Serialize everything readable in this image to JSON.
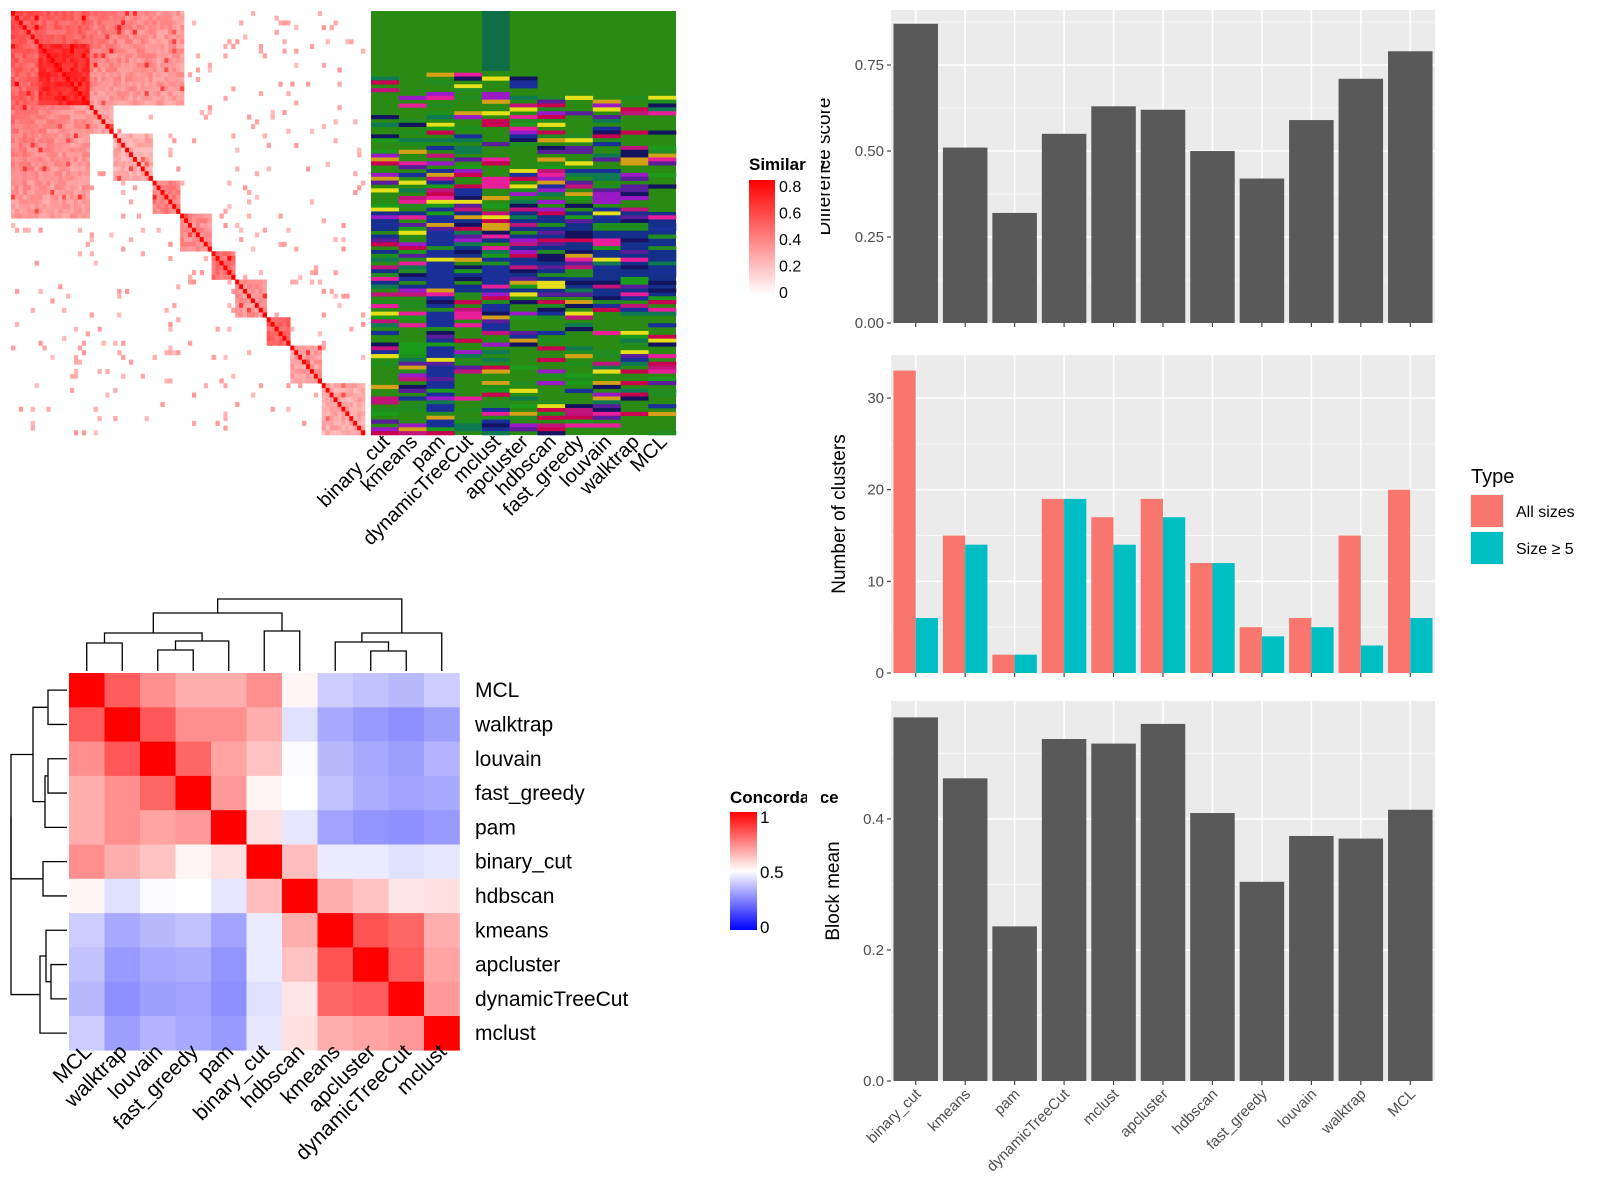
{
  "methods": [
    "binary_cut",
    "kmeans",
    "pam",
    "dynamicTreeCut",
    "mclust",
    "apcluster",
    "hdbscan",
    "fast_greedy",
    "louvain",
    "walktrap",
    "MCL"
  ],
  "similarity_legend": {
    "title": "Similarity",
    "ticks": [
      "0.8",
      "0.6",
      "0.4",
      "0.2",
      "0"
    ]
  },
  "concordance_legend": {
    "title": "Concordance",
    "ticks": [
      "1",
      "0.5",
      "0"
    ]
  },
  "concordance_heatmap": {
    "rows": [
      "MCL",
      "walktrap",
      "louvain",
      "fast_greedy",
      "pam",
      "binary_cut",
      "hdbscan",
      "kmeans",
      "apcluster",
      "dynamicTreeCut",
      "mclust"
    ],
    "cols": [
      "MCL",
      "walktrap",
      "louvain",
      "fast_greedy",
      "pam",
      "binary_cut",
      "hdbscan",
      "kmeans",
      "apcluster",
      "dynamicTreeCut",
      "mclust"
    ],
    "values": [
      [
        1.0,
        0.82,
        0.72,
        0.66,
        0.66,
        0.72,
        0.52,
        0.4,
        0.38,
        0.36,
        0.4
      ],
      [
        0.82,
        1.0,
        0.83,
        0.72,
        0.72,
        0.66,
        0.44,
        0.33,
        0.3,
        0.28,
        0.31
      ],
      [
        0.72,
        0.83,
        1.0,
        0.8,
        0.68,
        0.62,
        0.49,
        0.36,
        0.33,
        0.31,
        0.35
      ],
      [
        0.66,
        0.72,
        0.8,
        1.0,
        0.7,
        0.52,
        0.5,
        0.38,
        0.34,
        0.32,
        0.33
      ],
      [
        0.66,
        0.72,
        0.68,
        0.7,
        1.0,
        0.56,
        0.45,
        0.32,
        0.29,
        0.28,
        0.3
      ],
      [
        0.72,
        0.66,
        0.62,
        0.52,
        0.56,
        1.0,
        0.63,
        0.46,
        0.46,
        0.44,
        0.45
      ],
      [
        0.52,
        0.44,
        0.49,
        0.5,
        0.45,
        0.63,
        1.0,
        0.66,
        0.62,
        0.55,
        0.56
      ],
      [
        0.4,
        0.33,
        0.36,
        0.38,
        0.32,
        0.46,
        0.66,
        1.0,
        0.84,
        0.8,
        0.66
      ],
      [
        0.38,
        0.3,
        0.33,
        0.34,
        0.29,
        0.46,
        0.62,
        0.84,
        1.0,
        0.82,
        0.68
      ],
      [
        0.36,
        0.28,
        0.31,
        0.32,
        0.28,
        0.44,
        0.55,
        0.8,
        0.82,
        1.0,
        0.7
      ],
      [
        0.4,
        0.31,
        0.35,
        0.33,
        0.3,
        0.45,
        0.56,
        0.66,
        0.68,
        0.7,
        1.0
      ]
    ]
  },
  "chart_data": [
    {
      "type": "bar",
      "ylabel": "Difference score",
      "categories": [
        "binary_cut",
        "kmeans",
        "pam",
        "dynamicTreeCut",
        "mclust",
        "apcluster",
        "hdbscan",
        "fast_greedy",
        "louvain",
        "walktrap",
        "MCL"
      ],
      "values": [
        0.87,
        0.51,
        0.32,
        0.55,
        0.63,
        0.62,
        0.5,
        0.42,
        0.59,
        0.71,
        0.79
      ],
      "yticks": [
        "0.00",
        "0.25",
        "0.50",
        "0.75"
      ],
      "ylim": [
        0,
        0.91
      ]
    },
    {
      "type": "bar",
      "ylabel": "Number of clusters",
      "categories": [
        "binary_cut",
        "kmeans",
        "pam",
        "dynamicTreeCut",
        "mclust",
        "apcluster",
        "hdbscan",
        "fast_greedy",
        "louvain",
        "walktrap",
        "MCL"
      ],
      "series": [
        {
          "name": "All sizes",
          "color": "#F8766D",
          "values": [
            33,
            15,
            2,
            19,
            17,
            19,
            12,
            5,
            6,
            15,
            20
          ]
        },
        {
          "name": "Size ≥ 5",
          "color": "#00BFC4",
          "values": [
            6,
            14,
            2,
            19,
            14,
            17,
            12,
            4,
            5,
            3,
            6
          ]
        }
      ],
      "yticks": [
        "0",
        "10",
        "20",
        "30"
      ],
      "ylim": [
        0,
        34.7
      ],
      "legend_title": "Type",
      "legend_position": "right"
    },
    {
      "type": "bar",
      "ylabel": "Block mean",
      "categories": [
        "binary_cut",
        "kmeans",
        "pam",
        "dynamicTreeCut",
        "mclust",
        "apcluster",
        "hdbscan",
        "fast_greedy",
        "louvain",
        "walktrap",
        "MCL"
      ],
      "values": [
        0.555,
        0.462,
        0.236,
        0.522,
        0.515,
        0.545,
        0.409,
        0.304,
        0.374,
        0.37,
        0.414
      ],
      "yticks": [
        "0.0",
        "0.2",
        "0.4"
      ],
      "ylim": [
        0,
        0.58
      ]
    }
  ]
}
